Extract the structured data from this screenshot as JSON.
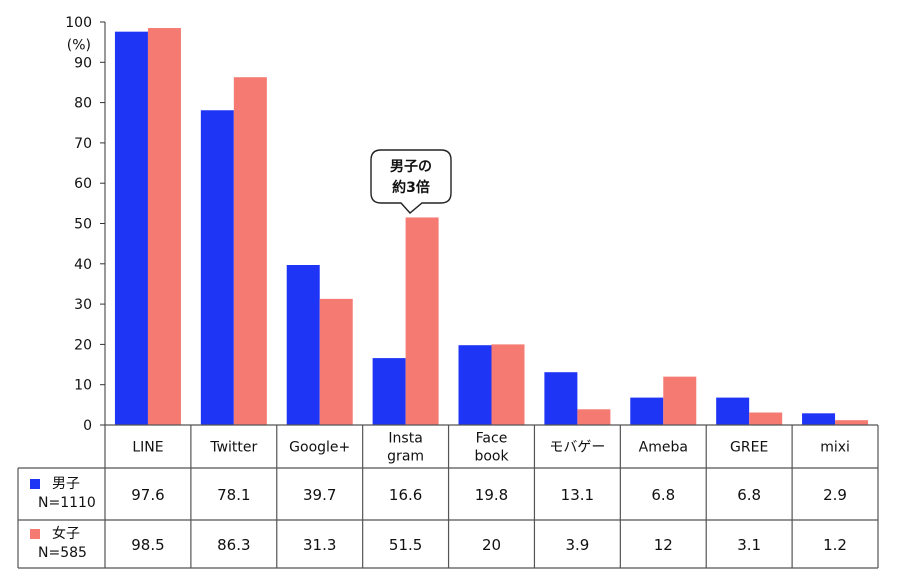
{
  "chart_data": {
    "type": "bar",
    "categories": [
      [
        "LINE"
      ],
      [
        "Twitter"
      ],
      [
        "Google+"
      ],
      [
        "Insta",
        "gram"
      ],
      [
        "Face",
        "book"
      ],
      [
        "モバゲー"
      ],
      [
        "Ameba"
      ],
      [
        "GREE"
      ],
      [
        "mixi"
      ]
    ],
    "series": [
      {
        "name": "男子",
        "sample": "N=1110",
        "color": "#1f35f5",
        "values": [
          97.6,
          78.1,
          39.7,
          16.6,
          19.8,
          13.1,
          6.8,
          6.8,
          2.9
        ],
        "labels": [
          "97.6",
          "78.1",
          "39.7",
          "16.6",
          "19.8",
          "13.1",
          "6.8",
          "6.8",
          "2.9"
        ]
      },
      {
        "name": "女子",
        "sample": "N=585",
        "color": "#f47a72",
        "values": [
          98.5,
          86.3,
          31.3,
          51.5,
          20.0,
          3.9,
          12.0,
          3.1,
          1.2
        ],
        "labels": [
          "98.5",
          "86.3",
          "31.3",
          "51.5",
          "20",
          "3.9",
          "12",
          "3.1",
          "1.2"
        ]
      }
    ],
    "ylim": [
      0,
      100
    ],
    "yticks": [
      0,
      10,
      20,
      30,
      40,
      50,
      60,
      70,
      80,
      90,
      100
    ],
    "yunit": "(%)",
    "legend_placement": "data table rows below chart",
    "grid": false,
    "annotation": {
      "lines": [
        "男子の",
        "約3倍"
      ],
      "category_index": 3,
      "series_index": 1
    }
  }
}
